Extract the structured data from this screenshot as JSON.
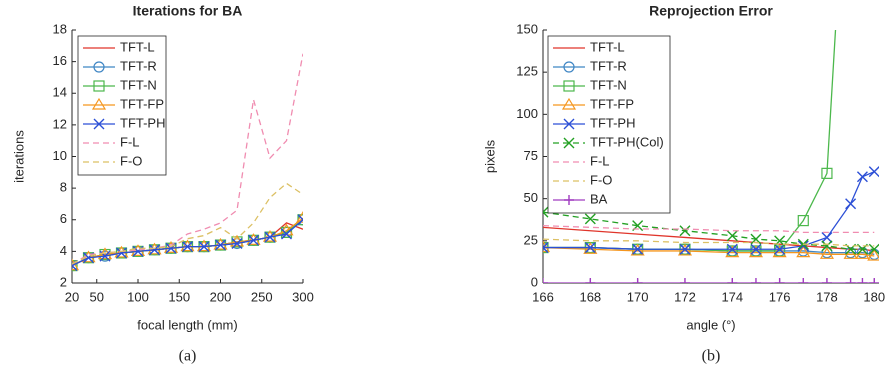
{
  "chart_data": [
    {
      "type": "line",
      "title": "Iterations for BA",
      "xlabel": "focal length (mm)",
      "ylabel": "iterations",
      "caption": "(a)",
      "x": [
        20,
        40,
        60,
        80,
        100,
        120,
        140,
        160,
        180,
        200,
        220,
        240,
        260,
        280,
        300
      ],
      "xlim": [
        20,
        300
      ],
      "xticks": [
        20,
        50,
        100,
        150,
        200,
        250,
        300
      ],
      "ylim": [
        2,
        18
      ],
      "yticks": [
        2,
        4,
        6,
        8,
        10,
        12,
        14,
        16,
        18
      ],
      "series": [
        {
          "name": "TFT-L",
          "color": "#e0352b",
          "marker": "none",
          "dash": false,
          "values": [
            3.1,
            3.6,
            3.8,
            3.9,
            4.0,
            4.1,
            4.2,
            4.3,
            4.3,
            4.4,
            4.6,
            4.7,
            4.9,
            5.8,
            5.4
          ]
        },
        {
          "name": "TFT-R",
          "color": "#3f86c4",
          "marker": "circle",
          "dash": false,
          "values": [
            3.1,
            3.6,
            3.7,
            3.9,
            4.0,
            4.1,
            4.2,
            4.3,
            4.3,
            4.4,
            4.5,
            4.7,
            4.9,
            5.2,
            6.0
          ]
        },
        {
          "name": "TFT-N",
          "color": "#4cb84c",
          "marker": "square",
          "dash": false,
          "values": [
            3.1,
            3.6,
            3.8,
            3.9,
            4.0,
            4.1,
            4.2,
            4.3,
            4.3,
            4.4,
            4.6,
            4.7,
            4.9,
            5.2,
            6.0
          ]
        },
        {
          "name": "TFT-FP",
          "color": "#f5961e",
          "marker": "triangle",
          "dash": false,
          "values": [
            3.1,
            3.6,
            3.8,
            3.9,
            4.0,
            4.1,
            4.2,
            4.3,
            4.3,
            4.4,
            4.6,
            4.7,
            4.9,
            5.3,
            6.1
          ]
        },
        {
          "name": "TFT-PH",
          "color": "#2c4fd6",
          "marker": "cross",
          "dash": false,
          "values": [
            3.1,
            3.6,
            3.7,
            3.9,
            4.0,
            4.1,
            4.2,
            4.3,
            4.3,
            4.4,
            4.5,
            4.7,
            4.9,
            5.1,
            6.0
          ]
        },
        {
          "name": "F-L",
          "color": "#f08cb0",
          "marker": "none",
          "dash": true,
          "values": [
            3.2,
            3.8,
            3.9,
            4.0,
            4.1,
            4.2,
            4.4,
            5.1,
            5.4,
            5.8,
            6.6,
            13.6,
            9.9,
            11.0,
            16.5
          ]
        },
        {
          "name": "F-O",
          "color": "#dcc064",
          "marker": "none",
          "dash": true,
          "values": [
            3.2,
            3.7,
            3.9,
            4.0,
            4.2,
            4.2,
            4.3,
            4.8,
            5.0,
            5.5,
            4.8,
            5.8,
            7.4,
            8.3,
            7.6
          ]
        }
      ]
    },
    {
      "type": "line",
      "title": "Reprojection Error",
      "xlabel": "angle (°)",
      "ylabel": "pixels",
      "caption": "(b)",
      "x": [
        166,
        168,
        170,
        172,
        174,
        175,
        176,
        177,
        178,
        179,
        179.5,
        180
      ],
      "xlim": [
        166,
        180.2
      ],
      "xticks": [
        166,
        168,
        170,
        172,
        174,
        176,
        178,
        180
      ],
      "ylim": [
        0,
        150
      ],
      "yticks": [
        0,
        25,
        50,
        75,
        100,
        125,
        150
      ],
      "series": [
        {
          "name": "TFT-L",
          "color": "#e0352b",
          "marker": "none",
          "dash": false,
          "values": [
            33,
            31,
            29,
            27,
            25,
            24,
            23,
            22,
            21,
            20,
            20,
            19
          ]
        },
        {
          "name": "TFT-R",
          "color": "#3f86c4",
          "marker": "circle",
          "dash": false,
          "values": [
            21,
            21,
            20,
            20,
            19,
            19,
            19,
            19,
            18,
            18,
            18,
            17
          ]
        },
        {
          "name": "TFT-N",
          "color": "#4cb84c",
          "marker": "square",
          "dash": false,
          "values": [
            21,
            21,
            20,
            20,
            19,
            19,
            19,
            37,
            65,
            300,
            null,
            null
          ]
        },
        {
          "name": "TFT-FP",
          "color": "#f5961e",
          "marker": "triangle",
          "dash": false,
          "values": [
            21,
            20,
            19,
            19,
            18,
            18,
            18,
            18,
            17,
            17,
            17,
            16
          ]
        },
        {
          "name": "TFT-PH",
          "color": "#2c4fd6",
          "marker": "cross",
          "dash": false,
          "values": [
            21,
            21,
            20,
            20,
            20,
            20,
            20,
            22,
            27,
            47,
            63,
            66
          ]
        },
        {
          "name": "TFT-PH(Col)",
          "color": "#23a023",
          "marker": "cross",
          "dash": true,
          "values": [
            42,
            38,
            34,
            31,
            28,
            26,
            25,
            23,
            22,
            20,
            20,
            20
          ]
        },
        {
          "name": "F-L",
          "color": "#f08cb0",
          "marker": "none",
          "dash": true,
          "values": [
            34,
            33,
            32,
            32,
            31,
            31,
            31,
            30,
            30,
            30,
            30,
            30
          ]
        },
        {
          "name": "F-O",
          "color": "#dcc064",
          "marker": "none",
          "dash": true,
          "values": [
            26,
            25,
            25,
            24,
            24,
            24,
            23,
            23,
            23,
            22,
            22,
            22
          ]
        },
        {
          "name": "BA",
          "color": "#a03cc0",
          "marker": "plus",
          "dash": false,
          "values": [
            0,
            0,
            0,
            0,
            0,
            0,
            0,
            0,
            0,
            0,
            0,
            0
          ]
        }
      ]
    }
  ]
}
